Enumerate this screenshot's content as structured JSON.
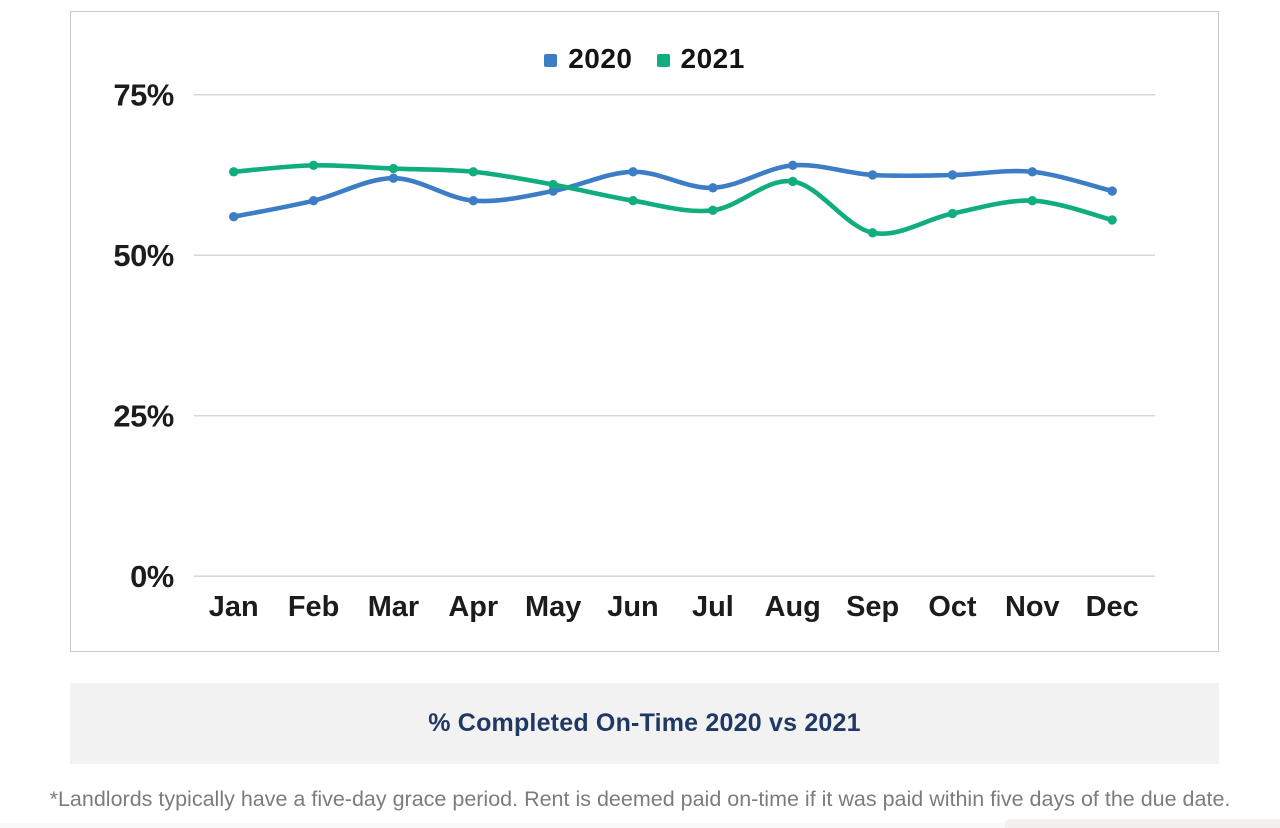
{
  "legend": {
    "items": [
      {
        "label": "2020",
        "color": "#3c7dc6"
      },
      {
        "label": "2021",
        "color": "#10ad7e"
      }
    ]
  },
  "caption": {
    "text": "% Completed On-Time 2020 vs 2021"
  },
  "footnote": {
    "text": "*Landlords typically have a five-day grace period. Rent is deemed paid on-time if it was paid within five days of the due date."
  },
  "colors": {
    "series_2020": "#3c7dc6",
    "series_2021": "#10ad7e",
    "gridline": "#d8d8d8",
    "axis_text": "#1c1c1c",
    "caption_text": "#1f3864",
    "caption_background": "#f2f2f2",
    "footnote_text": "#7c7c7c",
    "card_border": "#c9c9c9"
  },
  "chart_data": {
    "type": "line",
    "title": "% Completed On-Time 2020 vs 2021",
    "xlabel": "",
    "ylabel": "",
    "categories": [
      "Jan",
      "Feb",
      "Mar",
      "Apr",
      "May",
      "Jun",
      "Jul",
      "Aug",
      "Sep",
      "Oct",
      "Nov",
      "Dec"
    ],
    "series": [
      {
        "name": "2020",
        "color": "#3c7dc6",
        "values": [
          56,
          58.5,
          62,
          58.5,
          60,
          63,
          60.5,
          64,
          62.5,
          62.5,
          63,
          60
        ]
      },
      {
        "name": "2021",
        "color": "#10ad7e",
        "values": [
          63,
          64,
          63.5,
          63,
          61,
          58.5,
          57,
          61.5,
          53.5,
          56.5,
          58.5,
          55.5
        ]
      }
    ],
    "yticks": [
      0,
      25,
      50,
      75
    ],
    "ytick_suffix": "%",
    "ylim": [
      0,
      75
    ],
    "grid": true,
    "smooth": true,
    "legend_position": "top"
  }
}
